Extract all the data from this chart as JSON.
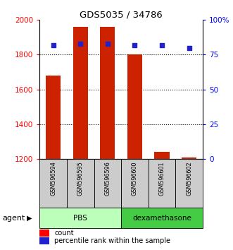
{
  "title": "GDS5035 / 34786",
  "samples": [
    "GSM596594",
    "GSM596595",
    "GSM596596",
    "GSM596600",
    "GSM596601",
    "GSM596602"
  ],
  "counts": [
    1680,
    1960,
    1960,
    1800,
    1240,
    1210
  ],
  "percentiles": [
    82,
    83,
    83,
    82,
    82,
    80
  ],
  "ylim_left": [
    1200,
    2000
  ],
  "ylim_right": [
    0,
    100
  ],
  "yticks_left": [
    1200,
    1400,
    1600,
    1800,
    2000
  ],
  "yticks_right": [
    0,
    25,
    50,
    75,
    100
  ],
  "ytick_labels_right": [
    "0",
    "25",
    "50",
    "75",
    "100%"
  ],
  "bar_color": "#cc2200",
  "dot_color": "#2222cc",
  "bar_width": 0.55,
  "pbs_color_light": "#ccffcc",
  "pbs_color_dark": "#55dd55",
  "agent_label": "agent",
  "legend_count_label": "count",
  "legend_pct_label": "percentile rank within the sample",
  "sample_box_color": "#cccccc",
  "groups": [
    {
      "label": "PBS",
      "start": 0,
      "end": 2,
      "color": "#bbffbb"
    },
    {
      "label": "dexamethasone",
      "start": 3,
      "end": 5,
      "color": "#44cc44"
    }
  ]
}
